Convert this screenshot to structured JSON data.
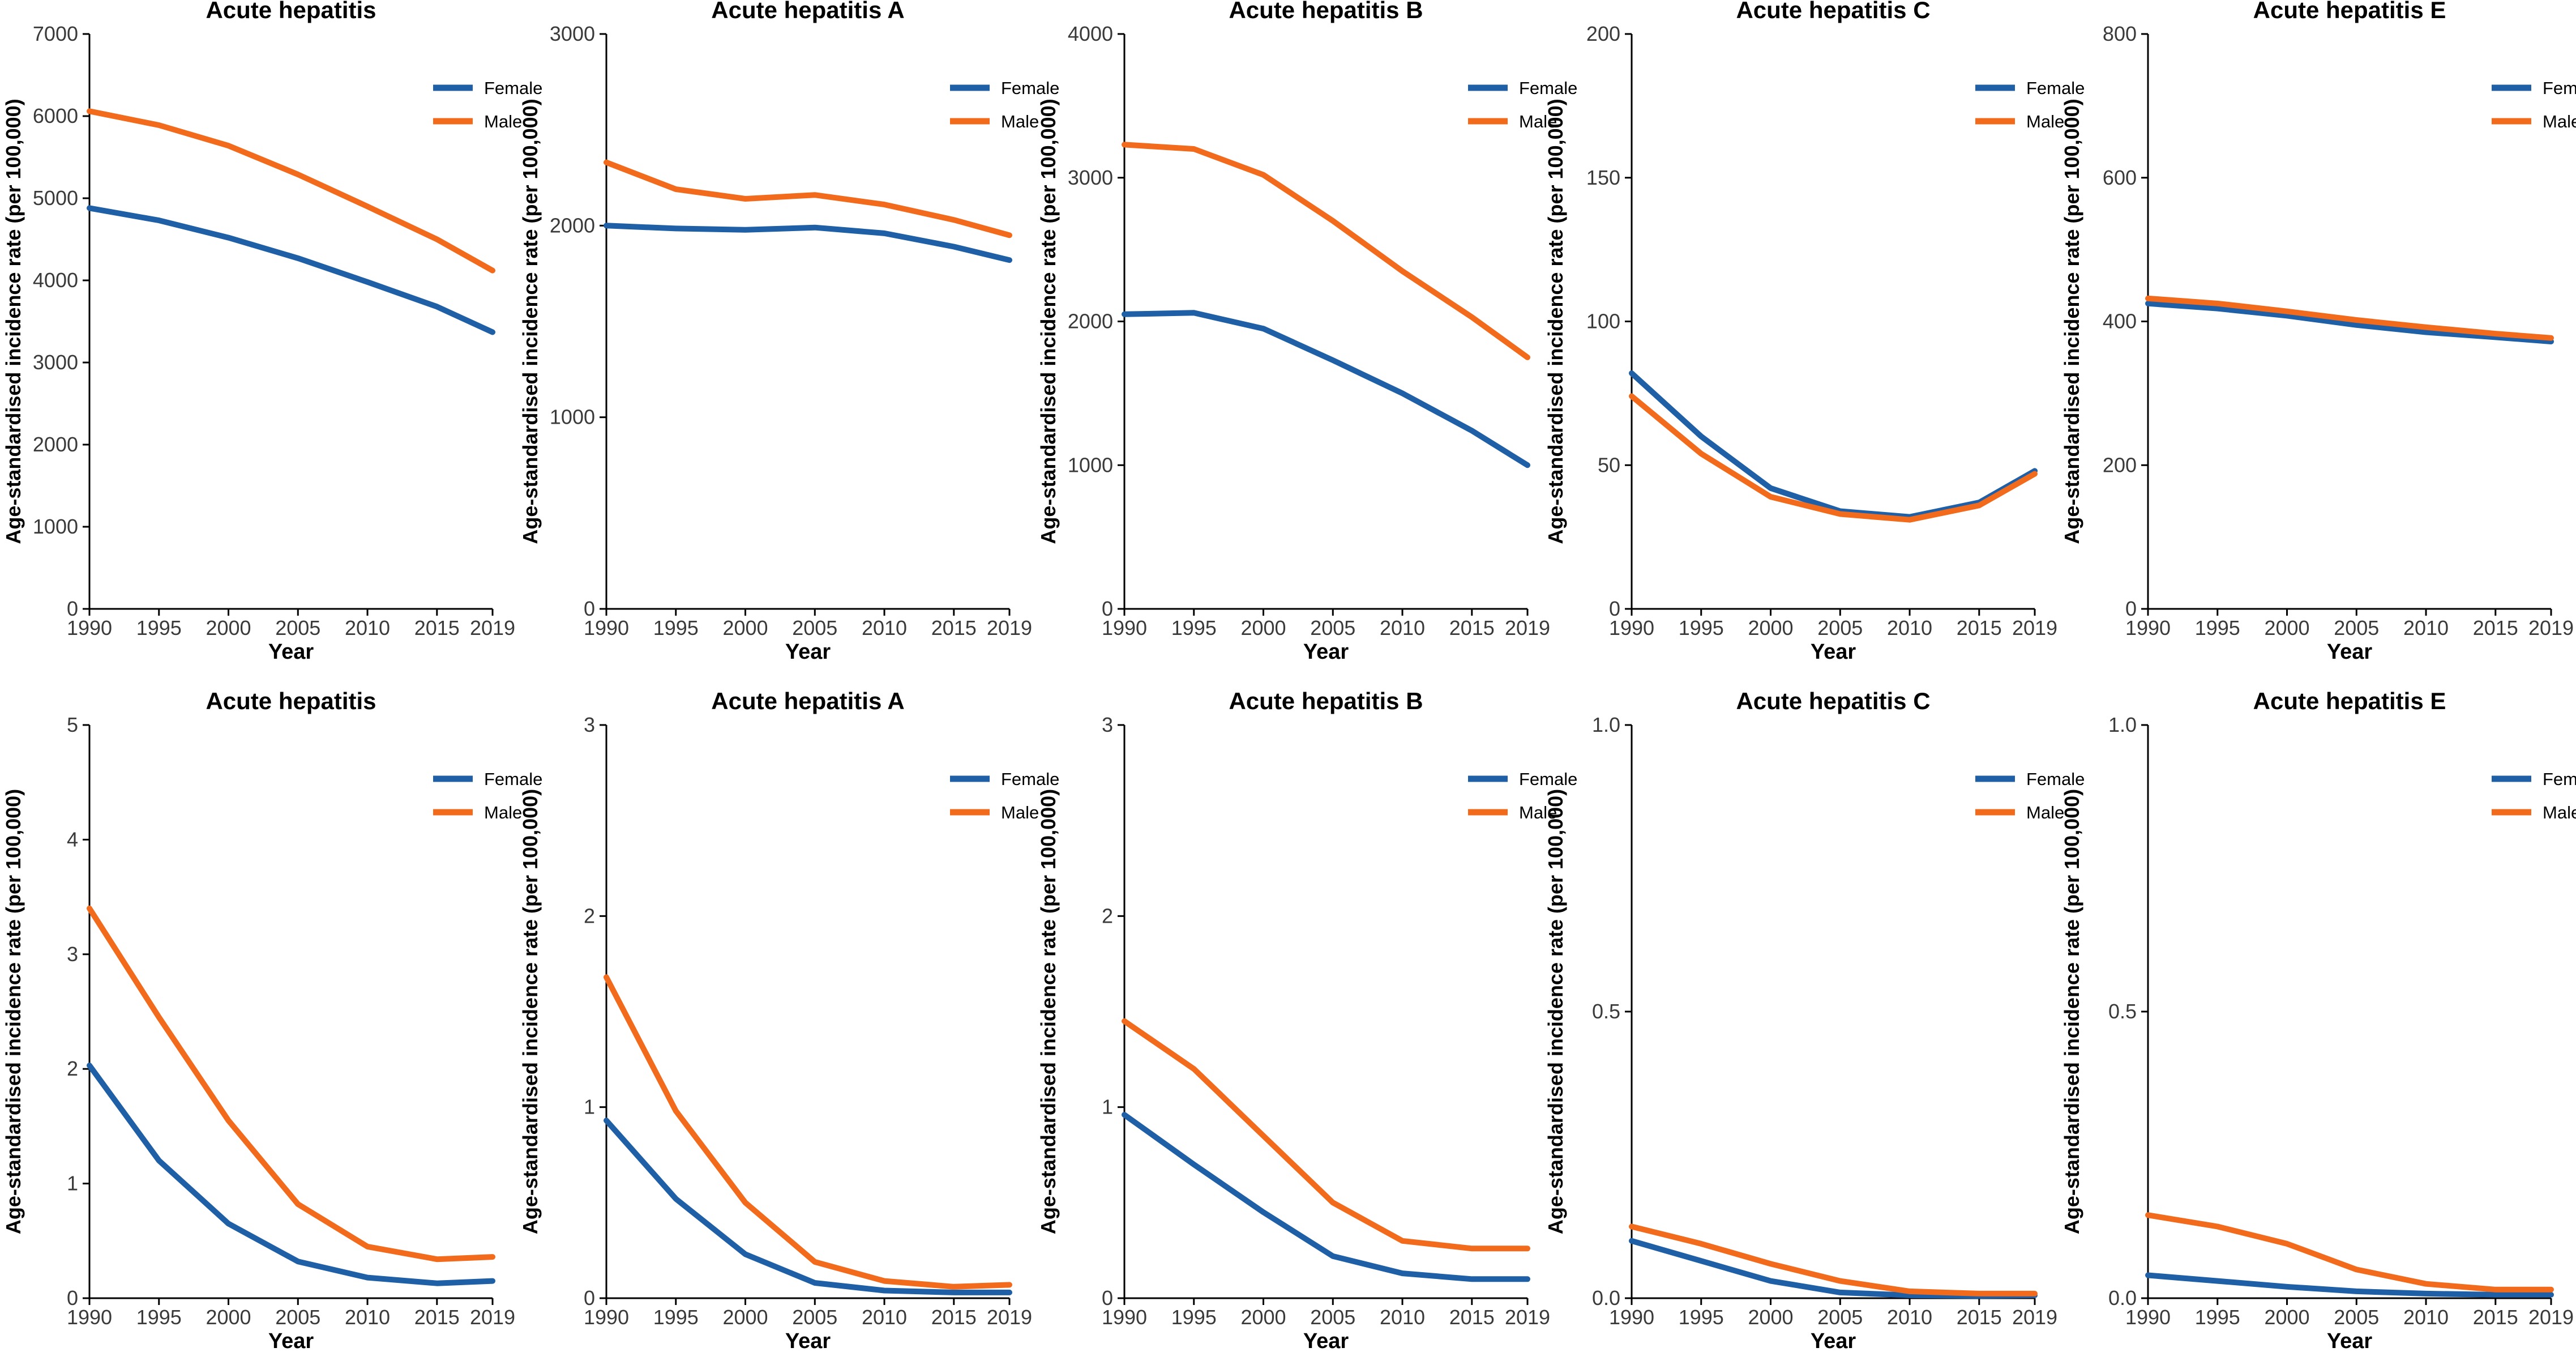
{
  "colors": {
    "Female": "#1f5fa6",
    "Male": "#f26b1d"
  },
  "chart_data": [
    {
      "type": "line",
      "title": "Acute hepatitis",
      "xlabel": "Year",
      "ylabel": "Age-standardised incidence rate (per 100,000)",
      "xlim": [
        1990,
        2019
      ],
      "ylim": [
        0,
        7000
      ],
      "xticks": [
        "1990",
        "1995",
        "2000",
        "2005",
        "2010",
        "2015",
        "2019"
      ],
      "yticks": [
        "0",
        "1000",
        "2000",
        "3000",
        "4000",
        "5000",
        "6000",
        "7000"
      ],
      "x": [
        1990,
        1995,
        2000,
        2005,
        2010,
        2015,
        2019
      ],
      "series": [
        {
          "name": "Female",
          "values": [
            4880,
            4730,
            4520,
            4270,
            3980,
            3680,
            3370
          ]
        },
        {
          "name": "Male",
          "values": [
            6060,
            5890,
            5640,
            5290,
            4900,
            4500,
            4120
          ]
        }
      ]
    },
    {
      "type": "line",
      "title": "Acute hepatitis A",
      "xlabel": "Year",
      "ylabel": "Age-standardised incidence rate (per 100,000)",
      "xlim": [
        1990,
        2019
      ],
      "ylim": [
        0,
        3000
      ],
      "xticks": [
        "1990",
        "1995",
        "2000",
        "2005",
        "2010",
        "2015",
        "2019"
      ],
      "yticks": [
        "0",
        "1000",
        "2000",
        "3000"
      ],
      "x": [
        1990,
        1995,
        2000,
        2005,
        2010,
        2015,
        2019
      ],
      "series": [
        {
          "name": "Female",
          "values": [
            2000,
            1985,
            1978,
            1990,
            1960,
            1890,
            1820
          ]
        },
        {
          "name": "Male",
          "values": [
            2330,
            2190,
            2140,
            2160,
            2110,
            2030,
            1950
          ]
        }
      ]
    },
    {
      "type": "line",
      "title": "Acute hepatitis B",
      "xlabel": "Year",
      "ylabel": "Age-standardised incidence rate (per 100,000)",
      "xlim": [
        1990,
        2019
      ],
      "ylim": [
        0,
        4000
      ],
      "xticks": [
        "1990",
        "1995",
        "2000",
        "2005",
        "2010",
        "2015",
        "2019"
      ],
      "yticks": [
        "0",
        "1000",
        "2000",
        "3000",
        "4000"
      ],
      "x": [
        1990,
        1995,
        2000,
        2005,
        2010,
        2015,
        2019
      ],
      "series": [
        {
          "name": "Female",
          "values": [
            2050,
            2060,
            1950,
            1730,
            1500,
            1240,
            1000
          ]
        },
        {
          "name": "Male",
          "values": [
            3230,
            3200,
            3020,
            2700,
            2350,
            2030,
            1750
          ]
        }
      ]
    },
    {
      "type": "line",
      "title": "Acute hepatitis C",
      "xlabel": "Year",
      "ylabel": "Age-standardised incidence rate (per 100,000)",
      "xlim": [
        1990,
        2019
      ],
      "ylim": [
        0,
        200
      ],
      "xticks": [
        "1990",
        "1995",
        "2000",
        "2005",
        "2010",
        "2015",
        "2019"
      ],
      "yticks": [
        "0",
        "50",
        "100",
        "150",
        "200"
      ],
      "x": [
        1990,
        1995,
        2000,
        2005,
        2010,
        2015,
        2019
      ],
      "series": [
        {
          "name": "Female",
          "values": [
            82,
            60,
            42,
            34,
            32,
            37,
            48
          ]
        },
        {
          "name": "Male",
          "values": [
            74,
            54,
            39,
            33,
            31,
            36,
            47
          ]
        }
      ]
    },
    {
      "type": "line",
      "title": "Acute hepatitis E",
      "xlabel": "Year",
      "ylabel": "Age-standardised incidence rate (per 100,000)",
      "xlim": [
        1990,
        2019
      ],
      "ylim": [
        0,
        800
      ],
      "xticks": [
        "1990",
        "1995",
        "2000",
        "2005",
        "2010",
        "2015",
        "2019"
      ],
      "yticks": [
        "0",
        "200",
        "400",
        "600",
        "800"
      ],
      "x": [
        1990,
        1995,
        2000,
        2005,
        2010,
        2015,
        2019
      ],
      "series": [
        {
          "name": "Female",
          "values": [
            425,
            418,
            408,
            395,
            385,
            378,
            372
          ]
        },
        {
          "name": "Male",
          "values": [
            432,
            425,
            414,
            402,
            392,
            383,
            377
          ]
        }
      ]
    },
    {
      "type": "line",
      "title": "Acute hepatitis",
      "xlabel": "Year",
      "ylabel": "Age-standardised incidence rate (per 100,000)",
      "xlim": [
        1990,
        2019
      ],
      "ylim": [
        0,
        5
      ],
      "xticks": [
        "1990",
        "1995",
        "2000",
        "2005",
        "2010",
        "2015",
        "2019"
      ],
      "yticks": [
        "0",
        "1",
        "2",
        "3",
        "4",
        "5"
      ],
      "x": [
        1990,
        1995,
        2000,
        2005,
        2010,
        2015,
        2019
      ],
      "series": [
        {
          "name": "Female",
          "values": [
            2.03,
            1.2,
            0.65,
            0.32,
            0.18,
            0.13,
            0.15
          ]
        },
        {
          "name": "Male",
          "values": [
            3.4,
            2.45,
            1.55,
            0.82,
            0.45,
            0.34,
            0.36
          ]
        }
      ]
    },
    {
      "type": "line",
      "title": "Acute hepatitis A",
      "xlabel": "Year",
      "ylabel": "Age-standardised incidence rate (per 100,000)",
      "xlim": [
        1990,
        2019
      ],
      "ylim": [
        0,
        3
      ],
      "xticks": [
        "1990",
        "1995",
        "2000",
        "2005",
        "2010",
        "2015",
        "2019"
      ],
      "yticks": [
        "0",
        "1",
        "2",
        "3"
      ],
      "x": [
        1990,
        1995,
        2000,
        2005,
        2010,
        2015,
        2019
      ],
      "series": [
        {
          "name": "Female",
          "values": [
            0.93,
            0.52,
            0.23,
            0.08,
            0.04,
            0.03,
            0.03
          ]
        },
        {
          "name": "Male",
          "values": [
            1.68,
            0.98,
            0.5,
            0.19,
            0.09,
            0.06,
            0.07
          ]
        }
      ]
    },
    {
      "type": "line",
      "title": "Acute hepatitis B",
      "xlabel": "Year",
      "ylabel": "Age-standardised incidence rate (per 100,000)",
      "xlim": [
        1990,
        2019
      ],
      "ylim": [
        0,
        3
      ],
      "xticks": [
        "1990",
        "1995",
        "2000",
        "2005",
        "2010",
        "2015",
        "2019"
      ],
      "yticks": [
        "0",
        "1",
        "2",
        "3"
      ],
      "x": [
        1990,
        1995,
        2000,
        2005,
        2010,
        2015,
        2019
      ],
      "series": [
        {
          "name": "Female",
          "values": [
            0.96,
            0.7,
            0.45,
            0.22,
            0.13,
            0.1,
            0.1
          ]
        },
        {
          "name": "Male",
          "values": [
            1.45,
            1.2,
            0.85,
            0.5,
            0.3,
            0.26,
            0.26
          ]
        }
      ]
    },
    {
      "type": "line",
      "title": "Acute hepatitis C",
      "xlabel": "Year",
      "ylabel": "Age-standardised incidence rate (per 100,000)",
      "xlim": [
        1990,
        2019
      ],
      "ylim": [
        0,
        1.0
      ],
      "xticks": [
        "1990",
        "1995",
        "2000",
        "2005",
        "2010",
        "2015",
        "2019"
      ],
      "yticks": [
        "0.0",
        "0.5",
        "1.0"
      ],
      "x": [
        1990,
        1995,
        2000,
        2005,
        2010,
        2015,
        2019
      ],
      "series": [
        {
          "name": "Female",
          "values": [
            0.1,
            0.065,
            0.03,
            0.01,
            0.005,
            0.004,
            0.005
          ]
        },
        {
          "name": "Male",
          "values": [
            0.125,
            0.095,
            0.06,
            0.03,
            0.012,
            0.008,
            0.008
          ]
        }
      ]
    },
    {
      "type": "line",
      "title": "Acute hepatitis E",
      "xlabel": "Year",
      "ylabel": "Age-standardised incidence rate (per 100,000)",
      "xlim": [
        1990,
        2019
      ],
      "ylim": [
        0,
        1.0
      ],
      "xticks": [
        "1990",
        "1995",
        "2000",
        "2005",
        "2010",
        "2015",
        "2019"
      ],
      "yticks": [
        "0.0",
        "0.5",
        "1.0"
      ],
      "x": [
        1990,
        1995,
        2000,
        2005,
        2010,
        2015,
        2019
      ],
      "series": [
        {
          "name": "Female",
          "values": [
            0.04,
            0.03,
            0.02,
            0.012,
            0.008,
            0.006,
            0.006
          ]
        },
        {
          "name": "Male",
          "values": [
            0.145,
            0.125,
            0.095,
            0.05,
            0.025,
            0.015,
            0.015
          ]
        }
      ]
    }
  ]
}
